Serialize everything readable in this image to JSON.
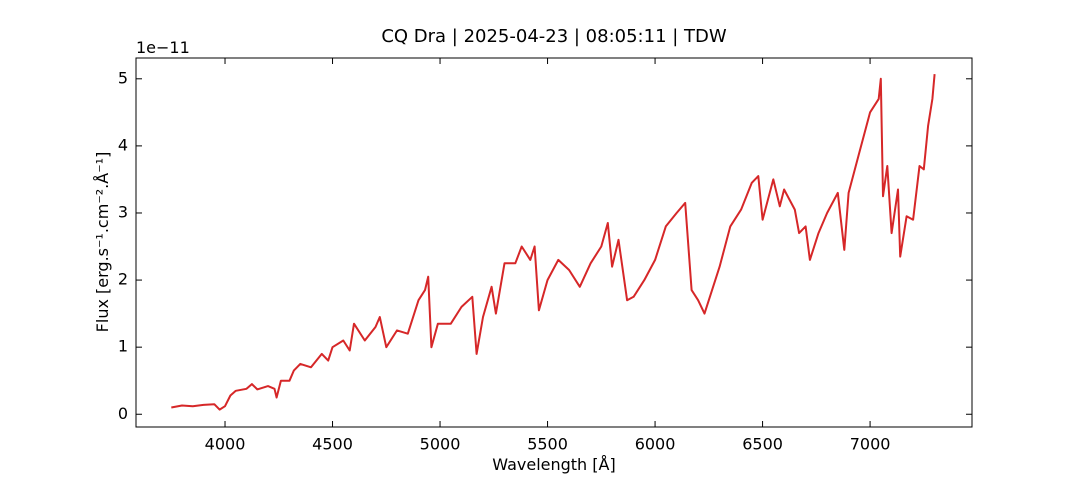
{
  "chart_data": {
    "type": "line",
    "title": "CQ Dra | 2025-04-23 | 08:05:11 | TDW",
    "x_label": "Wavelength [Å]",
    "y_label": "Flux [erg.s⁻¹.cm⁻².Å⁻¹]",
    "y_offset_label": "1e−11",
    "color": "#d62728",
    "x": [
      3750,
      3800,
      3850,
      3900,
      3950,
      3975,
      4000,
      4025,
      4050,
      4100,
      4125,
      4150,
      4200,
      4230,
      4240,
      4260,
      4300,
      4320,
      4350,
      4400,
      4450,
      4480,
      4500,
      4550,
      4580,
      4600,
      4650,
      4700,
      4720,
      4750,
      4800,
      4850,
      4900,
      4930,
      4945,
      4960,
      4990,
      5050,
      5100,
      5150,
      5170,
      5200,
      5240,
      5260,
      5300,
      5350,
      5380,
      5420,
      5440,
      5460,
      5500,
      5550,
      5600,
      5650,
      5700,
      5750,
      5780,
      5800,
      5830,
      5870,
      5900,
      5950,
      6000,
      6050,
      6100,
      6140,
      6170,
      6200,
      6230,
      6300,
      6350,
      6400,
      6450,
      6480,
      6500,
      6550,
      6580,
      6600,
      6650,
      6670,
      6700,
      6720,
      6760,
      6800,
      6850,
      6880,
      6900,
      6950,
      7000,
      7040,
      7050,
      7060,
      7080,
      7100,
      7130,
      7140,
      7170,
      7200,
      7230,
      7250,
      7270,
      7290,
      7300
    ],
    "values": [
      0.1,
      0.13,
      0.12,
      0.14,
      0.15,
      0.07,
      0.12,
      0.28,
      0.35,
      0.38,
      0.45,
      0.37,
      0.42,
      0.38,
      0.25,
      0.5,
      0.5,
      0.65,
      0.75,
      0.7,
      0.9,
      0.8,
      1.0,
      1.1,
      0.95,
      1.35,
      1.1,
      1.3,
      1.45,
      1.0,
      1.25,
      1.2,
      1.7,
      1.85,
      2.05,
      1.0,
      1.35,
      1.35,
      1.6,
      1.75,
      0.9,
      1.45,
      1.9,
      1.5,
      2.25,
      2.25,
      2.5,
      2.3,
      2.5,
      1.55,
      2.0,
      2.3,
      2.15,
      1.9,
      2.25,
      2.5,
      2.85,
      2.2,
      2.6,
      1.7,
      1.75,
      2.0,
      2.3,
      2.8,
      3.0,
      3.15,
      1.85,
      1.7,
      1.5,
      2.2,
      2.8,
      3.05,
      3.45,
      3.55,
      2.9,
      3.5,
      3.1,
      3.35,
      3.05,
      2.7,
      2.8,
      2.3,
      2.7,
      3.0,
      3.3,
      2.45,
      3.3,
      3.9,
      4.5,
      4.7,
      5.0,
      3.25,
      3.7,
      2.7,
      3.35,
      2.35,
      2.95,
      2.9,
      3.7,
      3.65,
      4.3,
      4.7,
      5.07
    ],
    "xlim": [
      3586,
      7474
    ],
    "ylim": [
      -0.19,
      5.31
    ],
    "xticks": [
      4000,
      4500,
      5000,
      5500,
      6000,
      6500,
      7000
    ],
    "yticks": [
      0,
      1,
      2,
      3,
      4,
      5
    ]
  }
}
